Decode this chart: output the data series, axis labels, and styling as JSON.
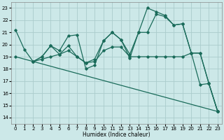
{
  "background_color": "#cce8e8",
  "grid_color": "#aacccc",
  "line_color": "#1a6b5a",
  "xlabel": "Humidex (Indice chaleur)",
  "xlim": [
    -0.5,
    23.5
  ],
  "ylim": [
    13.5,
    23.5
  ],
  "yticks": [
    14,
    15,
    16,
    17,
    18,
    19,
    20,
    21,
    22,
    23
  ],
  "xticks": [
    0,
    1,
    2,
    3,
    4,
    5,
    6,
    7,
    8,
    9,
    10,
    11,
    12,
    13,
    14,
    15,
    16,
    17,
    18,
    19,
    20,
    21,
    22,
    23
  ],
  "lines": [
    {
      "x": [
        0,
        1,
        2,
        3,
        4,
        5,
        6,
        7,
        8,
        9,
        10,
        11,
        12,
        13,
        14,
        15,
        16,
        17,
        18,
        19,
        20,
        21,
        22,
        23
      ],
      "y": [
        21.2,
        19.6,
        18.6,
        19.0,
        19.9,
        19.5,
        20.7,
        20.8,
        18.0,
        18.3,
        20.3,
        21.0,
        20.4,
        18.9,
        21.0,
        23.0,
        22.7,
        22.4,
        21.6,
        21.7,
        19.3,
        16.7,
        16.8,
        14.5
      ]
    },
    {
      "x": [
        2,
        3,
        4,
        5,
        6,
        7,
        8,
        9,
        10,
        11,
        12,
        13,
        14,
        15,
        16,
        17,
        18,
        19,
        20,
        21,
        22,
        23
      ],
      "y": [
        18.6,
        19.0,
        19.9,
        19.2,
        19.9,
        19.0,
        18.5,
        18.8,
        20.3,
        21.0,
        20.4,
        19.2,
        21.0,
        21.0,
        22.5,
        22.3,
        21.6,
        21.7,
        19.3,
        19.3,
        16.8,
        14.5
      ]
    },
    {
      "x": [
        2,
        3,
        4,
        5,
        6,
        7,
        8,
        9,
        10,
        11,
        12,
        13,
        14,
        15,
        16,
        17,
        18,
        19,
        20,
        21,
        22,
        23
      ],
      "y": [
        18.6,
        18.8,
        19.0,
        19.2,
        19.5,
        19.0,
        18.5,
        18.6,
        19.5,
        19.8,
        19.8,
        19.0,
        19.0,
        19.0,
        19.0,
        19.0,
        19.0,
        19.0,
        19.3,
        19.3,
        16.8,
        14.5
      ]
    },
    {
      "x": [
        0,
        23
      ],
      "y": [
        19.0,
        14.5
      ]
    }
  ]
}
